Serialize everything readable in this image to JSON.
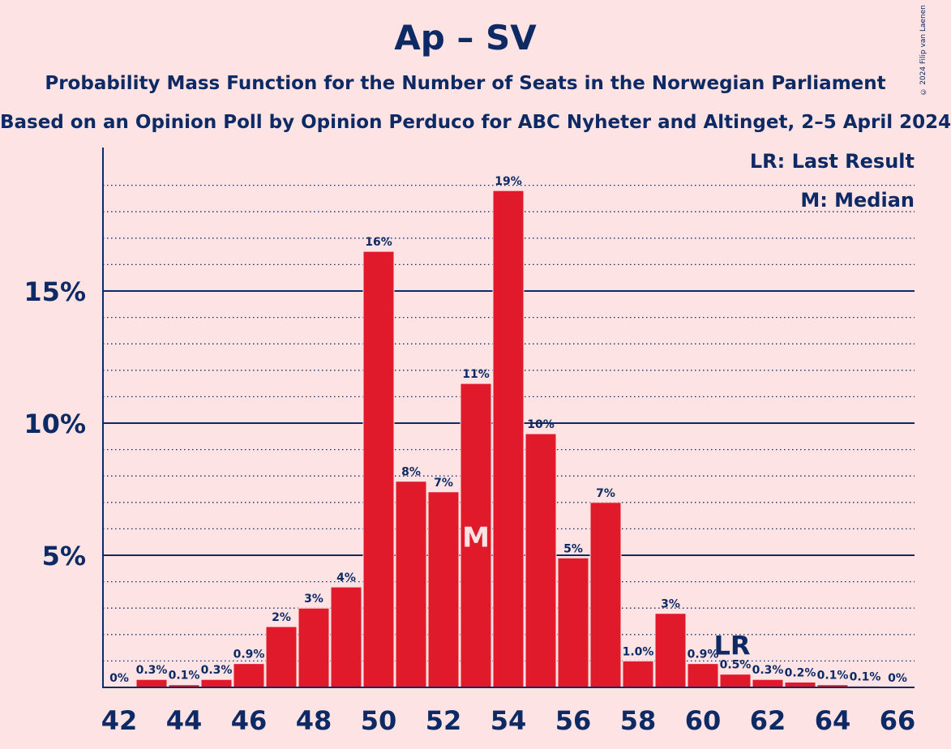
{
  "header": {
    "title": "Ap – SV",
    "subtitle": "Probability Mass Function for the Number of Seats in the Norwegian Parliament",
    "source": "Based on an Opinion Poll by Opinion Perduco for ABC Nyheter and Altinget, 2–5 April 2024",
    "copyright": "© 2024 Filip van Laenen"
  },
  "legend": {
    "last_result": "LR: Last Result",
    "median": "M: Median"
  },
  "colors": {
    "background": "#FDE3E4",
    "bar": "#E0192B",
    "text": "#0E2A64"
  },
  "chart_data": {
    "type": "bar",
    "x": [
      42,
      43,
      44,
      45,
      46,
      47,
      48,
      49,
      50,
      51,
      52,
      53,
      54,
      55,
      56,
      57,
      58,
      59,
      60,
      61,
      62,
      63,
      64,
      65,
      66
    ],
    "values": [
      0,
      0.3,
      0.1,
      0.3,
      0.9,
      2.3,
      3.0,
      3.8,
      16.5,
      7.8,
      7.4,
      11.5,
      18.8,
      9.6,
      4.9,
      7.0,
      1.0,
      2.8,
      0.9,
      0.5,
      0.3,
      0.2,
      0.1,
      0.05,
      0
    ],
    "labels": [
      "0%",
      "0.3%",
      "0.1%",
      "0.3%",
      "0.9%",
      "2%",
      "3%",
      "4%",
      "16%",
      "8%",
      "7%",
      "11%",
      "19%",
      "10%",
      "5%",
      "7%",
      "1.0%",
      "3%",
      "0.9%",
      "0.5%",
      "0.3%",
      "0.2%",
      "0.1%",
      "0.1%",
      "0%"
    ],
    "x_ticks": [
      "42",
      "44",
      "46",
      "48",
      "50",
      "52",
      "54",
      "56",
      "58",
      "60",
      "62",
      "64",
      "66"
    ],
    "y_ticks": [
      {
        "value": 5,
        "label": "5%"
      },
      {
        "value": 10,
        "label": "10%"
      },
      {
        "value": 15,
        "label": "15%"
      }
    ],
    "ylim": [
      0,
      20
    ],
    "minor_grid_step": 1,
    "median": {
      "x": 53,
      "label": "M"
    },
    "last_result": {
      "x": 61,
      "label": "LR"
    }
  }
}
